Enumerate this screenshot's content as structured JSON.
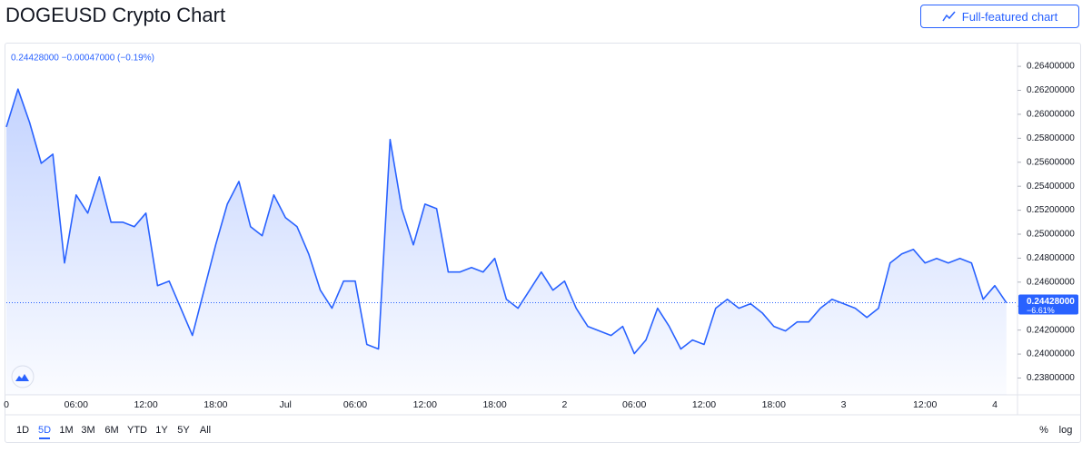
{
  "button": "Full-featured chart",
  "chart_data": {
    "type": "line",
    "title": "DOGEUSD Crypto Chart",
    "header_text": "0.24428000 −0.00047000 (−0.19%)",
    "color": "#2962ff",
    "categories": [
      "0",
      null,
      null,
      null,
      null,
      null,
      "06:00",
      null,
      null,
      null,
      null,
      null,
      "12:00",
      null,
      null,
      null,
      null,
      null,
      "18:00",
      null,
      null,
      null,
      null,
      null,
      "Jul",
      null,
      null,
      null,
      null,
      null,
      "06:00",
      null,
      null,
      null,
      null,
      null,
      "12:00",
      null,
      null,
      null,
      null,
      null,
      "18:00",
      null,
      null,
      null,
      null,
      null,
      "2",
      null,
      null,
      null,
      null,
      null,
      "06:00",
      null,
      null,
      null,
      null,
      null,
      "12:00",
      null,
      null,
      null,
      null,
      null,
      "18:00",
      null,
      null,
      null,
      null,
      null,
      "3",
      null,
      null,
      null,
      null,
      null,
      null,
      "12:00",
      null,
      null,
      null,
      null,
      null,
      "4",
      null
    ],
    "values": [
      0.25894,
      0.2621,
      0.25931,
      0.25591,
      0.25667,
      0.2476,
      0.25327,
      0.25176,
      0.25478,
      0.251,
      0.251,
      0.25062,
      0.25176,
      0.24571,
      0.24609,
      0.24382,
      0.24155,
      0.24533,
      0.24911,
      0.25251,
      0.2544,
      0.25062,
      0.24987,
      0.25327,
      0.25138,
      0.25062,
      0.24835,
      0.24533,
      0.24382,
      0.24609,
      0.24609,
      0.2408,
      0.24042,
      0.2579,
      0.25213,
      0.24911,
      0.25251,
      0.25213,
      0.24684,
      0.24684,
      0.24722,
      0.24684,
      0.24798,
      0.24457,
      0.24382,
      0.24533,
      0.24684,
      0.24533,
      0.24609,
      0.24382,
      0.24231,
      0.24193,
      0.24155,
      0.24231,
      0.24004,
      0.24117,
      0.24382,
      0.24231,
      0.24042,
      0.24117,
      0.2408,
      0.24382,
      0.24457,
      0.24382,
      0.2442,
      0.24344,
      0.24231,
      0.24193,
      0.24268,
      0.24268,
      0.24382,
      0.24457,
      0.2442,
      0.24382,
      0.24306,
      0.24382,
      0.2476,
      0.24835,
      0.24873,
      0.2476,
      0.24798,
      0.2476,
      0.24798,
      0.2476,
      0.24457,
      0.24571,
      0.24428
    ],
    "ylim": [
      0.2366,
      0.2659
    ],
    "yticks": [
      {
        "value": 0.238,
        "label": "0.23800000"
      },
      {
        "value": 0.24,
        "label": "0.24000000"
      },
      {
        "value": 0.242,
        "label": "0.24200000"
      },
      {
        "value": 0.244,
        "label": "0.24400000"
      },
      {
        "value": 0.246,
        "label": "0.24600000"
      },
      {
        "value": 0.248,
        "label": "0.24800000"
      },
      {
        "value": 0.25,
        "label": "0.25000000"
      },
      {
        "value": 0.252,
        "label": "0.25200000"
      },
      {
        "value": 0.254,
        "label": "0.25400000"
      },
      {
        "value": 0.256,
        "label": "0.25600000"
      },
      {
        "value": 0.258,
        "label": "0.25800000"
      },
      {
        "value": 0.26,
        "label": "0.26000000"
      },
      {
        "value": 0.262,
        "label": "0.26200000"
      },
      {
        "value": 0.264,
        "label": "0.26400000"
      }
    ],
    "price_marker": {
      "value": 0.24428,
      "label": "0.24428000",
      "change": "−6.61%"
    },
    "ranges": [
      "1D",
      "5D",
      "1M",
      "3M",
      "6M",
      "YTD",
      "1Y",
      "5Y",
      "All"
    ],
    "active_range": 1,
    "scale_options": [
      "%",
      "log"
    ]
  }
}
